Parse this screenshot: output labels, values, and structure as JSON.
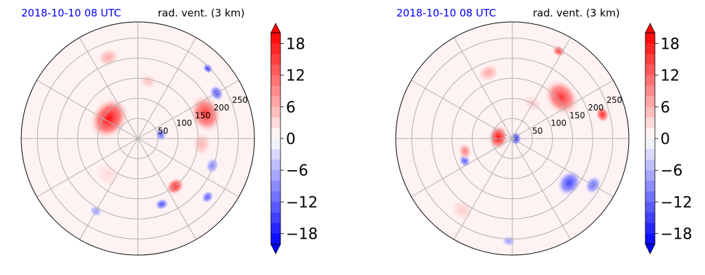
{
  "colors": {
    "time_label": "#0000ff",
    "title": "#000000",
    "grid": "#b0b0b0",
    "outline": "#000000"
  },
  "chart_data": [
    {
      "type": "heatmap",
      "projection": "polar",
      "time_label": "2018-10-10 08 UTC",
      "title": "rad. vent. (3 km)",
      "range_rings": [
        50,
        100,
        150,
        200,
        250
      ],
      "range_labels": [
        "50",
        "100",
        "150",
        "200",
        "250"
      ],
      "grid": true,
      "colorbar": {
        "position": "right",
        "ticks": [
          18,
          12,
          6,
          0,
          -6,
          -12,
          -18
        ],
        "tick_labels": [
          "18",
          "12",
          "6",
          "0",
          "−6",
          "−12",
          "−18"
        ],
        "vmin": -20,
        "vmax": 20,
        "extend": "both",
        "colormap": "bwr"
      },
      "features": [
        {
          "r": 0.3,
          "theta_deg": 145,
          "value": 19,
          "size": 0.16
        },
        {
          "r": 0.2,
          "theta_deg": 10,
          "value": -12,
          "size": 0.05
        },
        {
          "r": 0.62,
          "theta_deg": 20,
          "value": 16,
          "size": 0.14
        },
        {
          "r": 0.78,
          "theta_deg": 30,
          "value": -14,
          "size": 0.06
        },
        {
          "r": 0.85,
          "theta_deg": 45,
          "value": -16,
          "size": 0.04
        },
        {
          "r": 0.68,
          "theta_deg": 340,
          "value": -10,
          "size": 0.06
        },
        {
          "r": 0.52,
          "theta_deg": 308,
          "value": 17,
          "size": 0.07
        },
        {
          "r": 0.6,
          "theta_deg": 290,
          "value": -14,
          "size": 0.05
        },
        {
          "r": 0.78,
          "theta_deg": 320,
          "value": -13,
          "size": 0.05
        },
        {
          "r": 0.74,
          "theta_deg": 110,
          "value": 7,
          "size": 0.08
        },
        {
          "r": 0.5,
          "theta_deg": 80,
          "value": 5,
          "size": 0.07
        },
        {
          "r": 0.72,
          "theta_deg": 240,
          "value": -8,
          "size": 0.05
        },
        {
          "r": 0.4,
          "theta_deg": 230,
          "value": 3,
          "size": 0.12
        },
        {
          "r": 0.55,
          "theta_deg": 355,
          "value": 6,
          "size": 0.09
        }
      ]
    },
    {
      "type": "heatmap",
      "projection": "polar",
      "time_label": "2018-10-10 08 UTC",
      "title": "rad. vent. (3 km)",
      "range_rings": [
        50,
        100,
        150,
        200,
        250
      ],
      "range_labels": [
        "50",
        "100",
        "150",
        "200",
        "250"
      ],
      "grid": true,
      "colorbar": {
        "position": "right",
        "ticks": [
          18,
          12,
          6,
          0,
          -6,
          -12,
          -18
        ],
        "tick_labels": [
          "18",
          "12",
          "6",
          "0",
          "−6",
          "−12",
          "−18"
        ],
        "vmin": -20,
        "vmax": 20,
        "extend": "both",
        "colormap": "bwr"
      },
      "features": [
        {
          "r": 0.12,
          "theta_deg": 175,
          "value": 19,
          "size": 0.09
        },
        {
          "r": 0.03,
          "theta_deg": 0,
          "value": -19,
          "size": 0.05
        },
        {
          "r": 0.55,
          "theta_deg": 40,
          "value": 16,
          "size": 0.14
        },
        {
          "r": 0.8,
          "theta_deg": 15,
          "value": 17,
          "size": 0.06
        },
        {
          "r": 0.85,
          "theta_deg": 62,
          "value": 15,
          "size": 0.05
        },
        {
          "r": 0.62,
          "theta_deg": 322,
          "value": -15,
          "size": 0.1
        },
        {
          "r": 0.8,
          "theta_deg": 330,
          "value": -12,
          "size": 0.07
        },
        {
          "r": 0.45,
          "theta_deg": 205,
          "value": -13,
          "size": 0.05
        },
        {
          "r": 0.42,
          "theta_deg": 195,
          "value": 10,
          "size": 0.06
        },
        {
          "r": 0.6,
          "theta_deg": 110,
          "value": 7,
          "size": 0.08
        },
        {
          "r": 0.88,
          "theta_deg": 268,
          "value": -8,
          "size": 0.05
        },
        {
          "r": 0.75,
          "theta_deg": 235,
          "value": 4,
          "size": 0.1
        },
        {
          "r": 0.35,
          "theta_deg": 60,
          "value": 4,
          "size": 0.08
        }
      ]
    }
  ]
}
